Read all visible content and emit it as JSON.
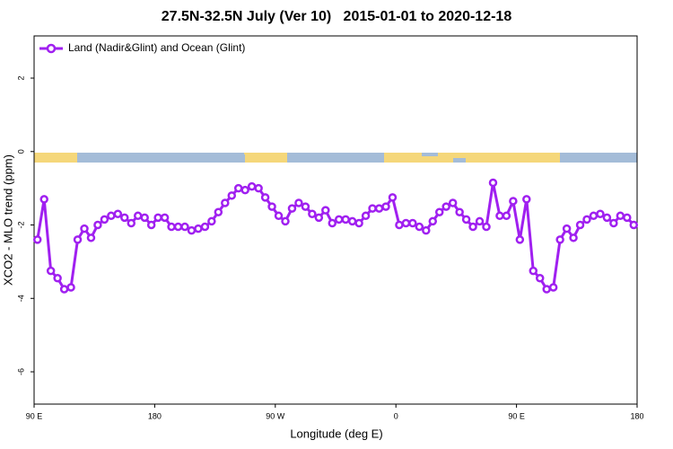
{
  "chart_data": {
    "type": "line",
    "title": "27.5N-32.5N July (Ver 10)   2015-01-01 to 2020-12-18",
    "xlabel": "Longitude (deg E)",
    "ylabel": "XCO2 - MLO trend (ppm)",
    "xlim": [
      90,
      540
    ],
    "ylim": [
      -6.88,
      3.15
    ],
    "xticks": [
      {
        "value": 90,
        "label": "90 E"
      },
      180,
      {
        "value": 270,
        "label": "90 W"
      },
      {
        "value": 360,
        "label": "0"
      },
      {
        "value": 450,
        "label": "90 E"
      },
      {
        "value": 540,
        "label": "180"
      }
    ],
    "yticks": [
      2,
      0,
      -2,
      -4,
      -6
    ],
    "legend": "top-left",
    "x": [
      92.5,
      97.5,
      102.5,
      107.5,
      112.5,
      117.5,
      122.5,
      127.5,
      132.5,
      137.5,
      142.5,
      147.5,
      152.5,
      157.5,
      162.5,
      167.5,
      172.5,
      177.5,
      182.5,
      187.5,
      192.5,
      197.5,
      202.5,
      207.5,
      212.5,
      217.5,
      222.5,
      227.5,
      232.5,
      237.5,
      242.5,
      247.5,
      252.5,
      257.5,
      262.5,
      267.5,
      272.5,
      277.5,
      282.5,
      287.5,
      292.5,
      297.5,
      302.5,
      307.5,
      312.5,
      317.5,
      322.5,
      327.5,
      332.5,
      337.5,
      342.5,
      347.5,
      352.5,
      357.5,
      362.5,
      367.5,
      372.5,
      377.5,
      382.5,
      387.5,
      392.5,
      397.5,
      402.5,
      407.5,
      412.5,
      417.5,
      422.5,
      427.5,
      432.5,
      437.5,
      442.5,
      447.5,
      452.5,
      457.5,
      462.5,
      467.5,
      472.5,
      477.5,
      482.5,
      487.5,
      492.5,
      497.5,
      502.5,
      507.5,
      512.5,
      517.5,
      522.5,
      527.5,
      532.5,
      537.5
    ],
    "series": [
      {
        "name": "Land (Nadir&Glint) and Ocean (Glint)",
        "color": "#a020f0",
        "values": [
          -2.4,
          -1.3,
          -3.25,
          -3.45,
          -3.75,
          -3.7,
          -2.4,
          -2.1,
          -2.35,
          -2.0,
          -1.85,
          -1.75,
          -1.7,
          -1.8,
          -1.95,
          -1.75,
          -1.8,
          -2.0,
          -1.8,
          -1.8,
          -2.05,
          -2.05,
          -2.05,
          -2.15,
          -2.1,
          -2.05,
          -1.9,
          -1.65,
          -1.4,
          -1.2,
          -1.0,
          -1.05,
          -0.95,
          -1.0,
          -1.25,
          -1.5,
          -1.75,
          -1.9,
          -1.55,
          -1.4,
          -1.5,
          -1.7,
          -1.8,
          -1.6,
          -1.95,
          -1.85,
          -1.85,
          -1.9,
          -1.95,
          -1.75,
          -1.55,
          -1.55,
          -1.5,
          -1.25,
          -2.0,
          -1.95,
          -1.95,
          -2.05,
          -2.15,
          -1.9,
          -1.65,
          -1.5,
          -1.4,
          -1.65,
          -1.85,
          -2.05,
          -1.9,
          -2.05,
          -0.85,
          -1.75,
          -1.75,
          -1.35,
          -2.4,
          -1.3,
          -3.25,
          -3.45,
          -3.75,
          -3.7,
          -2.4,
          -2.1,
          -2.35,
          -2.0,
          -1.85,
          -1.75,
          -1.7,
          -1.8,
          -1.95,
          -1.75,
          -1.8,
          -2.0
        ]
      }
    ]
  }
}
